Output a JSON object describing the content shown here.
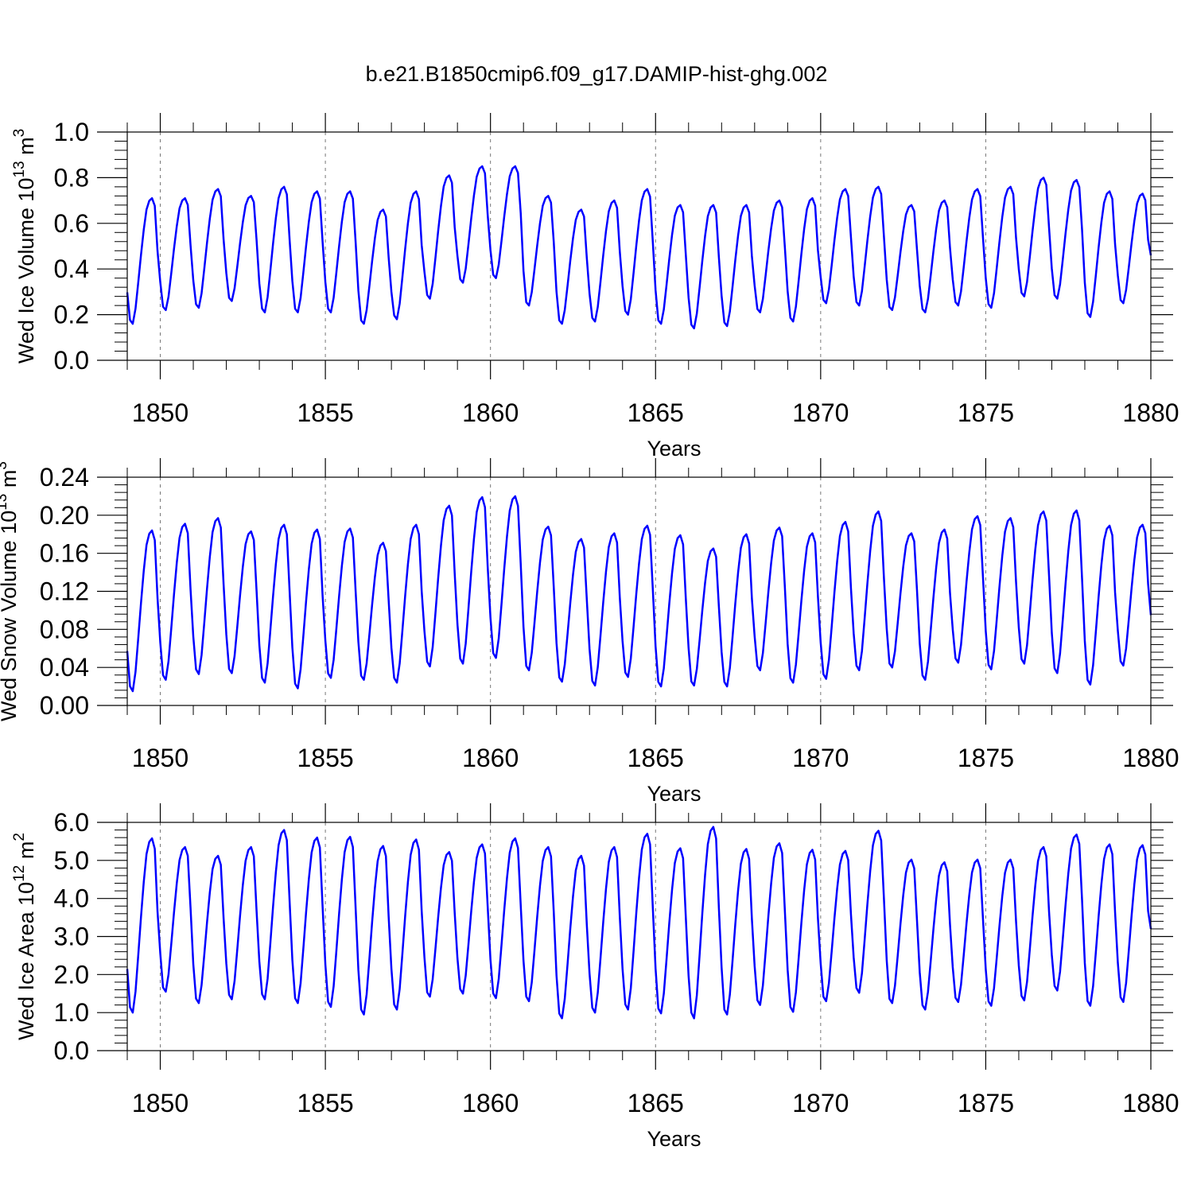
{
  "figure": {
    "title": "b.e21.B1850cmip6.f09_g17.DAMIP-hist-ghg.002"
  },
  "chart_data": [
    {
      "type": "line",
      "xlabel": "Years",
      "ylabel": "Wed Ice Volume 10",
      "ylabel_exp": "13",
      "ylabel_unit": " m",
      "ylabel_unit_exp": "3",
      "xlim": [
        1849.0,
        1880.0
      ],
      "ylim": [
        0.0,
        1.0
      ],
      "xticks": [
        1850,
        1855,
        1860,
        1865,
        1870,
        1875,
        1880
      ],
      "yticks": [
        "0.0",
        "0.2",
        "0.4",
        "0.6",
        "0.8",
        "1.0"
      ],
      "ytick_values": [
        0.0,
        0.2,
        0.4,
        0.6,
        0.8,
        1.0
      ],
      "grid": "vertical dashed lines at major x ticks",
      "line_color": "#0000ff",
      "series": [
        {
          "x_start": 1849.0,
          "x_step_months": 1,
          "annual_min": [
            0.16,
            0.22,
            0.23,
            0.26,
            0.21,
            0.21,
            0.21,
            0.16,
            0.18,
            0.27,
            0.34,
            0.36,
            0.24,
            0.16,
            0.17,
            0.2,
            0.16,
            0.14,
            0.15,
            0.21,
            0.17,
            0.25,
            0.24,
            0.22,
            0.21,
            0.24,
            0.23,
            0.28,
            0.27,
            0.19,
            0.25
          ],
          "annual_max": [
            0.71,
            0.71,
            0.75,
            0.72,
            0.76,
            0.74,
            0.74,
            0.66,
            0.74,
            0.81,
            0.85,
            0.85,
            0.72,
            0.66,
            0.7,
            0.75,
            0.68,
            0.68,
            0.68,
            0.7,
            0.71,
            0.75,
            0.76,
            0.68,
            0.7,
            0.75,
            0.76,
            0.8,
            0.79,
            0.74,
            0.73
          ],
          "end_value": 0.46
        }
      ]
    },
    {
      "type": "line",
      "xlabel": "Years",
      "ylabel": "Wed Snow Volume 10",
      "ylabel_exp": "13",
      "ylabel_unit": " m",
      "ylabel_unit_exp": "3",
      "xlim": [
        1849.0,
        1880.0
      ],
      "ylim": [
        0.0,
        0.24
      ],
      "xticks": [
        1850,
        1855,
        1860,
        1865,
        1870,
        1875,
        1880
      ],
      "yticks": [
        "0.00",
        "0.04",
        "0.08",
        "0.12",
        "0.16",
        "0.20",
        "0.24"
      ],
      "ytick_values": [
        0.0,
        0.04,
        0.08,
        0.12,
        0.16,
        0.2,
        0.24
      ],
      "grid": "vertical dashed lines at major x ticks",
      "line_color": "#0000ff",
      "series": [
        {
          "x_start": 1849.0,
          "x_step_months": 1,
          "annual_min": [
            0.015,
            0.027,
            0.033,
            0.034,
            0.024,
            0.018,
            0.029,
            0.027,
            0.024,
            0.041,
            0.044,
            0.05,
            0.037,
            0.025,
            0.021,
            0.03,
            0.02,
            0.021,
            0.02,
            0.037,
            0.024,
            0.028,
            0.037,
            0.04,
            0.027,
            0.045,
            0.038,
            0.044,
            0.034,
            0.022,
            0.042
          ],
          "annual_max": [
            0.184,
            0.191,
            0.197,
            0.183,
            0.19,
            0.185,
            0.186,
            0.171,
            0.19,
            0.21,
            0.219,
            0.22,
            0.188,
            0.175,
            0.181,
            0.189,
            0.179,
            0.165,
            0.18,
            0.187,
            0.181,
            0.193,
            0.204,
            0.181,
            0.185,
            0.199,
            0.197,
            0.204,
            0.205,
            0.189,
            0.19
          ],
          "end_value": 0.095
        }
      ]
    },
    {
      "type": "line",
      "xlabel": "Years",
      "ylabel": "Wed Ice Area 10",
      "ylabel_exp": "12",
      "ylabel_unit": " m",
      "ylabel_unit_exp": "2",
      "xlim": [
        1849.0,
        1880.0
      ],
      "ylim": [
        0.0,
        6.0
      ],
      "xticks": [
        1850,
        1855,
        1860,
        1865,
        1870,
        1875,
        1880
      ],
      "yticks": [
        "0.0",
        "1.0",
        "2.0",
        "3.0",
        "4.0",
        "5.0",
        "6.0"
      ],
      "ytick_values": [
        0.0,
        1.0,
        2.0,
        3.0,
        4.0,
        5.0,
        6.0
      ],
      "grid": "vertical dashed lines at major x ticks",
      "line_color": "#0000ff",
      "series": [
        {
          "x_start": 1849.0,
          "x_step_months": 1,
          "annual_min": [
            1.0,
            1.55,
            1.25,
            1.35,
            1.35,
            1.25,
            1.15,
            0.95,
            1.08,
            1.42,
            1.5,
            1.38,
            1.3,
            0.85,
            1.0,
            1.08,
            0.98,
            0.85,
            0.95,
            1.2,
            1.02,
            1.3,
            1.52,
            1.25,
            1.08,
            1.28,
            1.18,
            1.32,
            1.58,
            1.18,
            1.28
          ],
          "annual_max": [
            5.58,
            5.35,
            5.12,
            5.35,
            5.8,
            5.6,
            5.62,
            5.38,
            5.55,
            5.22,
            5.42,
            5.58,
            5.35,
            5.12,
            5.35,
            5.7,
            5.32,
            5.88,
            5.3,
            5.45,
            5.28,
            5.25,
            5.78,
            5.02,
            4.95,
            5.02,
            5.02,
            5.35,
            5.68,
            5.42,
            5.4
          ],
          "end_value": 3.2
        }
      ]
    }
  ]
}
